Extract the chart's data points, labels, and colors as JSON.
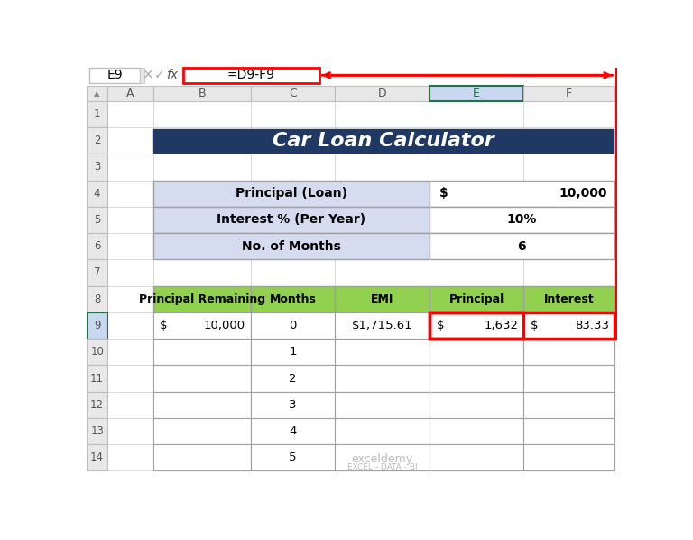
{
  "title": "Car Loan Calculator",
  "title_bg": "#1F3864",
  "title_color": "#FFFFFF",
  "formula_bar_cell": "E9",
  "formula_bar_formula": "=D9-F9",
  "col_headers": [
    "A",
    "B",
    "C",
    "D",
    "E",
    "F"
  ],
  "row_headers": [
    "1",
    "2",
    "3",
    "4",
    "5",
    "6",
    "7",
    "8",
    "9",
    "10",
    "11",
    "12",
    "13",
    "14"
  ],
  "info_table_labels": [
    "Principal (Loan)",
    "Interest % (Per Year)",
    "No. of Months"
  ],
  "info_table_values_line1": [
    "$",
    "10%",
    "6"
  ],
  "info_table_values_line2": [
    "10,000",
    "",
    ""
  ],
  "info_label_bg": "#D6DCF0",
  "info_value_bg": "#FFFFFF",
  "lt_headers": [
    "Principal Remaining",
    "Months",
    "EMI",
    "Principal",
    "Interest"
  ],
  "lt_header_bg": "#92D050",
  "lt_data_row0": [
    "$",
    "10,000",
    "0",
    "$1,715.61",
    "$",
    "1,632",
    "$",
    "83.33"
  ],
  "red_color": "#FF0000",
  "formula_box_border": "#FF0000",
  "excel_header_bg": "#E8E8E8",
  "excel_sel_col_bg": "#C8D8F0",
  "excel_sel_col_border": "#217346",
  "grid_color": "#D0D0D0",
  "cell_border": "#C0C0C0",
  "table_border": "#A0A0A0",
  "watermark": "exceldemy",
  "watermark_sub": "EXCEL - DATA - BI",
  "bg_color": "#F2F2F2"
}
